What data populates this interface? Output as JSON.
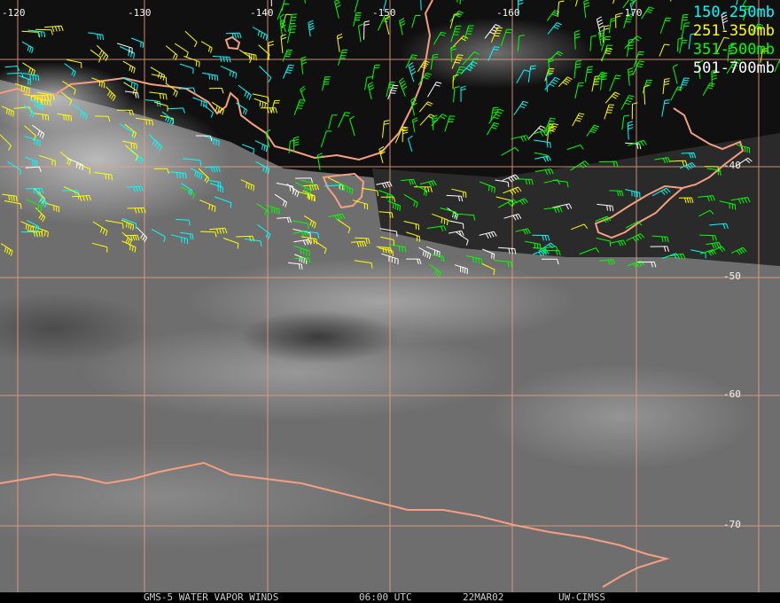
{
  "legend": [
    {
      "label": "150-250mb",
      "color": "#00ffff"
    },
    {
      "label": "251-350mb",
      "color": "#ffff00"
    },
    {
      "label": "351-500mb",
      "color": "#00ff00"
    },
    {
      "label": "501-700mb",
      "color": "#ffffff"
    }
  ],
  "longitude_labels": [
    "-120",
    "-130",
    "-140",
    "-150",
    "-160",
    "-170"
  ],
  "latitude_labels": [
    "-40",
    "-50",
    "-60",
    "-70"
  ],
  "footer": {
    "product": "GMS-5 WATER VAPOR WINDS",
    "time": "06:00 UTC",
    "date": "22MAR02",
    "source": "UW-CIMSS"
  },
  "colors": {
    "coastline": "#f4a080",
    "grid": "#e8a080",
    "cloud": "#b8b8b8"
  }
}
